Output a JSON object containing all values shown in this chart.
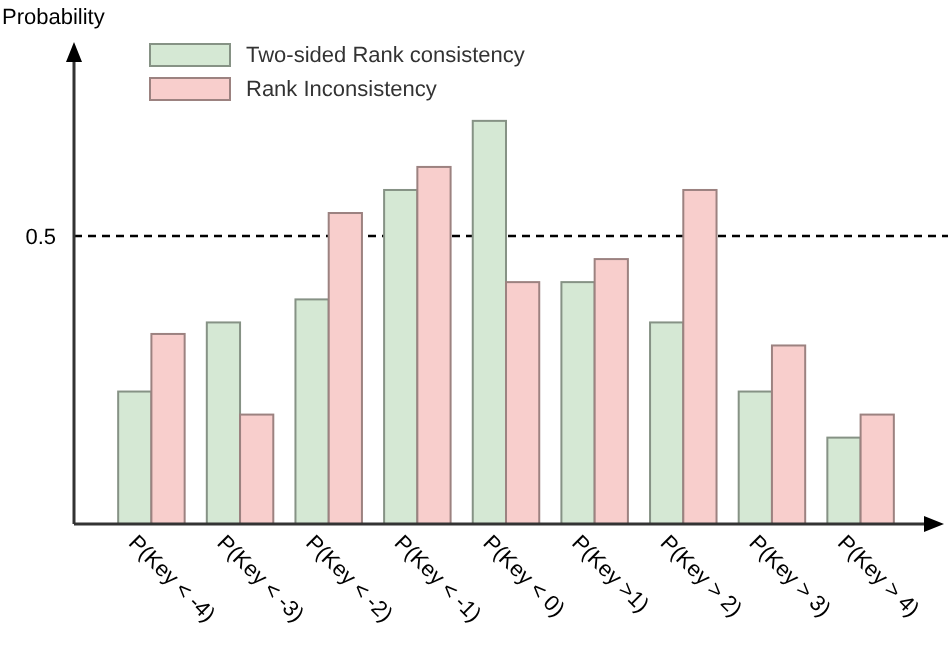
{
  "chart_data": {
    "type": "bar",
    "ylabel": "Probability",
    "categories": [
      "P(Key < -4)",
      "P(Key < -3)",
      "P(Key < -2)",
      "P(Key < -1)",
      "P(Key < 0)",
      "P(Key >1)",
      "P(Key > 2)",
      "P(Key > 3)",
      "P(Key > 4)"
    ],
    "series": [
      {
        "name": "Two-sided Rank consistency",
        "color": "#d5e8d4",
        "values": [
          0.23,
          0.35,
          0.39,
          0.58,
          0.7,
          0.42,
          0.35,
          0.23,
          0.15
        ]
      },
      {
        "name": "Rank Inconsistency",
        "color": "#f8cecc",
        "values": [
          0.33,
          0.19,
          0.54,
          0.62,
          0.42,
          0.46,
          0.58,
          0.31,
          0.19
        ]
      }
    ],
    "ylim": [
      0,
      0.83
    ],
    "yticks": [
      0.5
    ],
    "ref_lines": [
      {
        "axis": "y",
        "value": 0.5,
        "line_style": "dashed",
        "color": "#000000"
      }
    ],
    "grid": false,
    "legend": "top left"
  }
}
